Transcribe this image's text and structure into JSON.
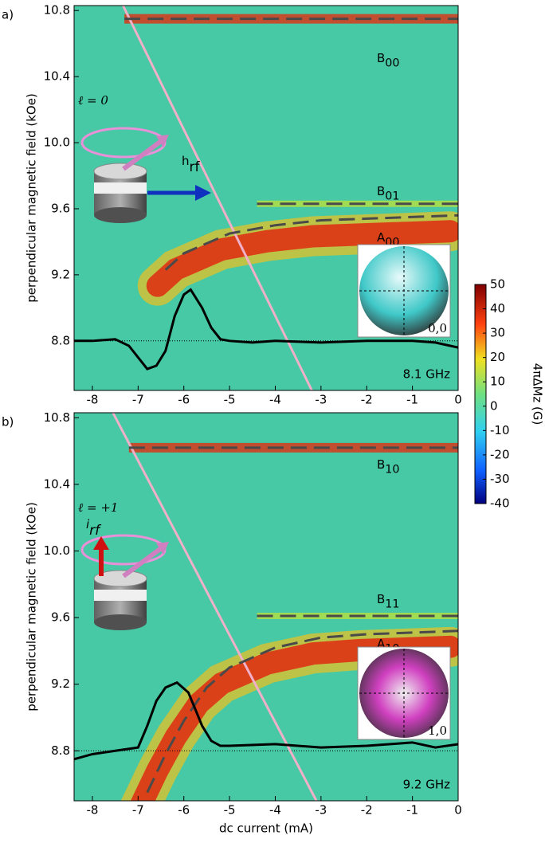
{
  "chart_data": [
    {
      "type": "heatmap",
      "panel_label": "a)",
      "ylabel": "perpendicular magnetic field (kOe)",
      "xlim": [
        -8.4,
        0
      ],
      "ylim": [
        8.5,
        10.83
      ],
      "xticks": [
        -8,
        -7,
        -6,
        -5,
        -4,
        -3,
        -2,
        -1,
        0
      ],
      "yticks": [
        8.8,
        9.2,
        9.6,
        {
          "value": 10,
          "label": "10.0"
        },
        10.4,
        10.8
      ],
      "reference_line": 8.8,
      "modes": [
        {
          "label": {
            "base": "B",
            "sub": "00"
          },
          "x": [
            -7.3,
            0
          ],
          "y": [
            10.75,
            10.75
          ]
        },
        {
          "label": {
            "base": "B",
            "sub": "01"
          },
          "x": [
            -4.4,
            0
          ],
          "y": [
            9.63,
            9.63
          ]
        },
        {
          "label": {
            "base": "A",
            "sub": "00"
          },
          "x": [
            -6.4,
            -6,
            -5,
            -4,
            -3,
            -2,
            0
          ],
          "y": [
            9.23,
            9.33,
            9.45,
            9.5,
            9.53,
            9.54,
            9.56
          ]
        }
      ],
      "profile": {
        "x": [
          -8.4,
          -8,
          -7.5,
          -7.2,
          -7,
          -6.8,
          -6.6,
          -6.4,
          -6.2,
          -6,
          -5.85,
          -5.6,
          -5.4,
          -5.2,
          -5,
          -4.5,
          -4,
          -3,
          -2,
          -1,
          -0.5,
          0
        ],
        "y": [
          8.8,
          8.8,
          8.81,
          8.77,
          8.7,
          8.63,
          8.65,
          8.74,
          8.95,
          9.08,
          9.11,
          9.0,
          8.88,
          8.81,
          8.8,
          8.79,
          8.8,
          8.79,
          8.8,
          8.8,
          8.79,
          8.76
        ]
      },
      "current_line": {
        "x": [
          -7.33,
          -3.2
        ],
        "y": [
          10.83,
          8.5
        ]
      },
      "frequency": "8.1 GHz",
      "frequency_color": "#1a2fd0",
      "mode_index": "ℓ = 0",
      "mode_color": "#3030c0",
      "drive": {
        "base": "h",
        "sub": "rf"
      },
      "drive_color": "#1030d0",
      "inset_label": "0,0"
    },
    {
      "type": "heatmap",
      "panel_label": "b)",
      "ylabel": "perpendicular magnetic field (kOe)",
      "xlabel": "dc current (mA)",
      "xlim": [
        -8.4,
        0
      ],
      "ylim": [
        8.5,
        10.83
      ],
      "xticks": [
        -8,
        -7,
        -6,
        -5,
        -4,
        -3,
        -2,
        -1,
        0
      ],
      "yticks": [
        8.8,
        9.2,
        9.6,
        {
          "value": 10,
          "label": "10.0"
        },
        10.4,
        10.8
      ],
      "reference_line": 8.8,
      "modes": [
        {
          "label": {
            "base": "B",
            "sub": "10"
          },
          "x": [
            -7.2,
            0
          ],
          "y": [
            10.62,
            10.62
          ]
        },
        {
          "label": {
            "base": "B",
            "sub": "11"
          },
          "x": [
            -4.4,
            0
          ],
          "y": [
            9.61,
            9.61
          ]
        },
        {
          "label": {
            "base": "A",
            "sub": "10"
          },
          "x": [
            -6.8,
            -6.4,
            -6,
            -5.5,
            -5,
            -4,
            -3,
            -2,
            0
          ],
          "y": [
            8.55,
            8.78,
            8.98,
            9.18,
            9.3,
            9.42,
            9.48,
            9.5,
            9.52
          ]
        }
      ],
      "profile": {
        "x": [
          -8.4,
          -8,
          -7.5,
          -7,
          -6.8,
          -6.6,
          -6.4,
          -6.15,
          -5.9,
          -5.6,
          -5.4,
          -5.2,
          -5,
          -4,
          -3,
          -2,
          -1,
          -0.5,
          0
        ],
        "y": [
          8.75,
          8.78,
          8.8,
          8.82,
          8.95,
          9.1,
          9.18,
          9.21,
          9.15,
          8.95,
          8.86,
          8.83,
          8.83,
          8.84,
          8.82,
          8.83,
          8.85,
          8.82,
          8.84
        ]
      },
      "current_line": {
        "x": [
          -7.55,
          -3.1
        ],
        "y": [
          10.83,
          8.5
        ]
      },
      "frequency": "9.2 GHz",
      "frequency_color": "#d01010",
      "mode_index": "ℓ = +1",
      "mode_color": "#c02020",
      "drive": {
        "base": "i",
        "sub": "rf"
      },
      "drive_color": "#b01818",
      "inset_label": "1,0"
    },
    {
      "type": "colorbar",
      "label": "4πΔMz (G)",
      "ylim": [
        -40,
        50
      ],
      "yticks": [
        -40,
        -30,
        -20,
        -10,
        0,
        10,
        20,
        30,
        40,
        50
      ]
    }
  ]
}
